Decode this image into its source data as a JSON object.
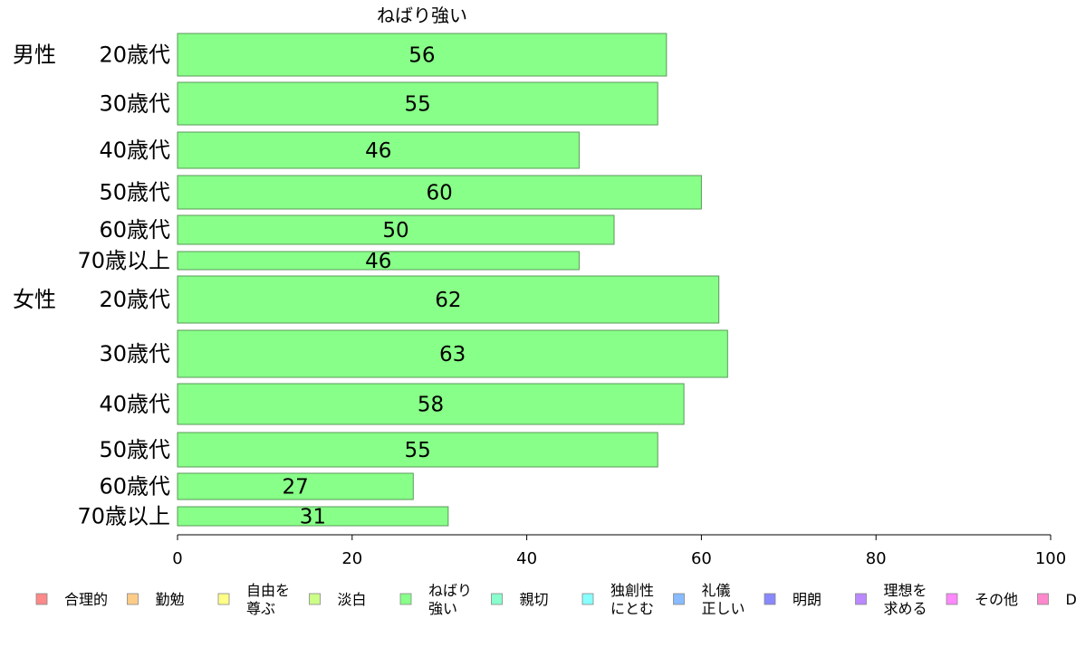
{
  "chart_data": {
    "type": "bar",
    "orientation": "horizontal",
    "title": "ねばり強い",
    "xlim": [
      0,
      100
    ],
    "xticks": [
      0,
      20,
      40,
      60,
      80,
      100
    ],
    "groups": [
      {
        "label": "男性",
        "start_index": 0
      },
      {
        "label": "女性",
        "start_index": 6
      }
    ],
    "categories": [
      "20歳代",
      "30歳代",
      "40歳代",
      "50歳代",
      "60歳代",
      "70歳以上",
      "20歳代",
      "30歳代",
      "40歳代",
      "50歳代",
      "60歳代",
      "70歳以上"
    ],
    "values": [
      56,
      55,
      46,
      60,
      50,
      46,
      62,
      63,
      58,
      55,
      27,
      31
    ],
    "value_labels": [
      "56",
      "55",
      "46",
      "60",
      "50",
      "46",
      "62",
      "63",
      "58",
      "55",
      "27",
      "31"
    ],
    "bar_color": "#88ff88",
    "legend": {
      "placement": "bottom",
      "items": [
        {
          "label": "合理的",
          "color": "#ff8888"
        },
        {
          "label": "勤勉",
          "color": "#ffcc88"
        },
        {
          "label": "自由を\n尊ぶ",
          "color": "#ffff88"
        },
        {
          "label": "淡白",
          "color": "#ccff88"
        },
        {
          "label": "ねばり\n強い",
          "color": "#88ff88"
        },
        {
          "label": "親切",
          "color": "#88ffcc"
        },
        {
          "label": "独創性\nにとむ",
          "color": "#88ffff"
        },
        {
          "label": "礼儀\n正しい",
          "color": "#88bbff"
        },
        {
          "label": "明朗",
          "color": "#8888ff"
        },
        {
          "label": "理想を\n求める",
          "color": "#bb88ff"
        },
        {
          "label": "その他",
          "color": "#ff88ff"
        },
        {
          "label": "D",
          "color": "#ff88cc"
        }
      ]
    }
  }
}
